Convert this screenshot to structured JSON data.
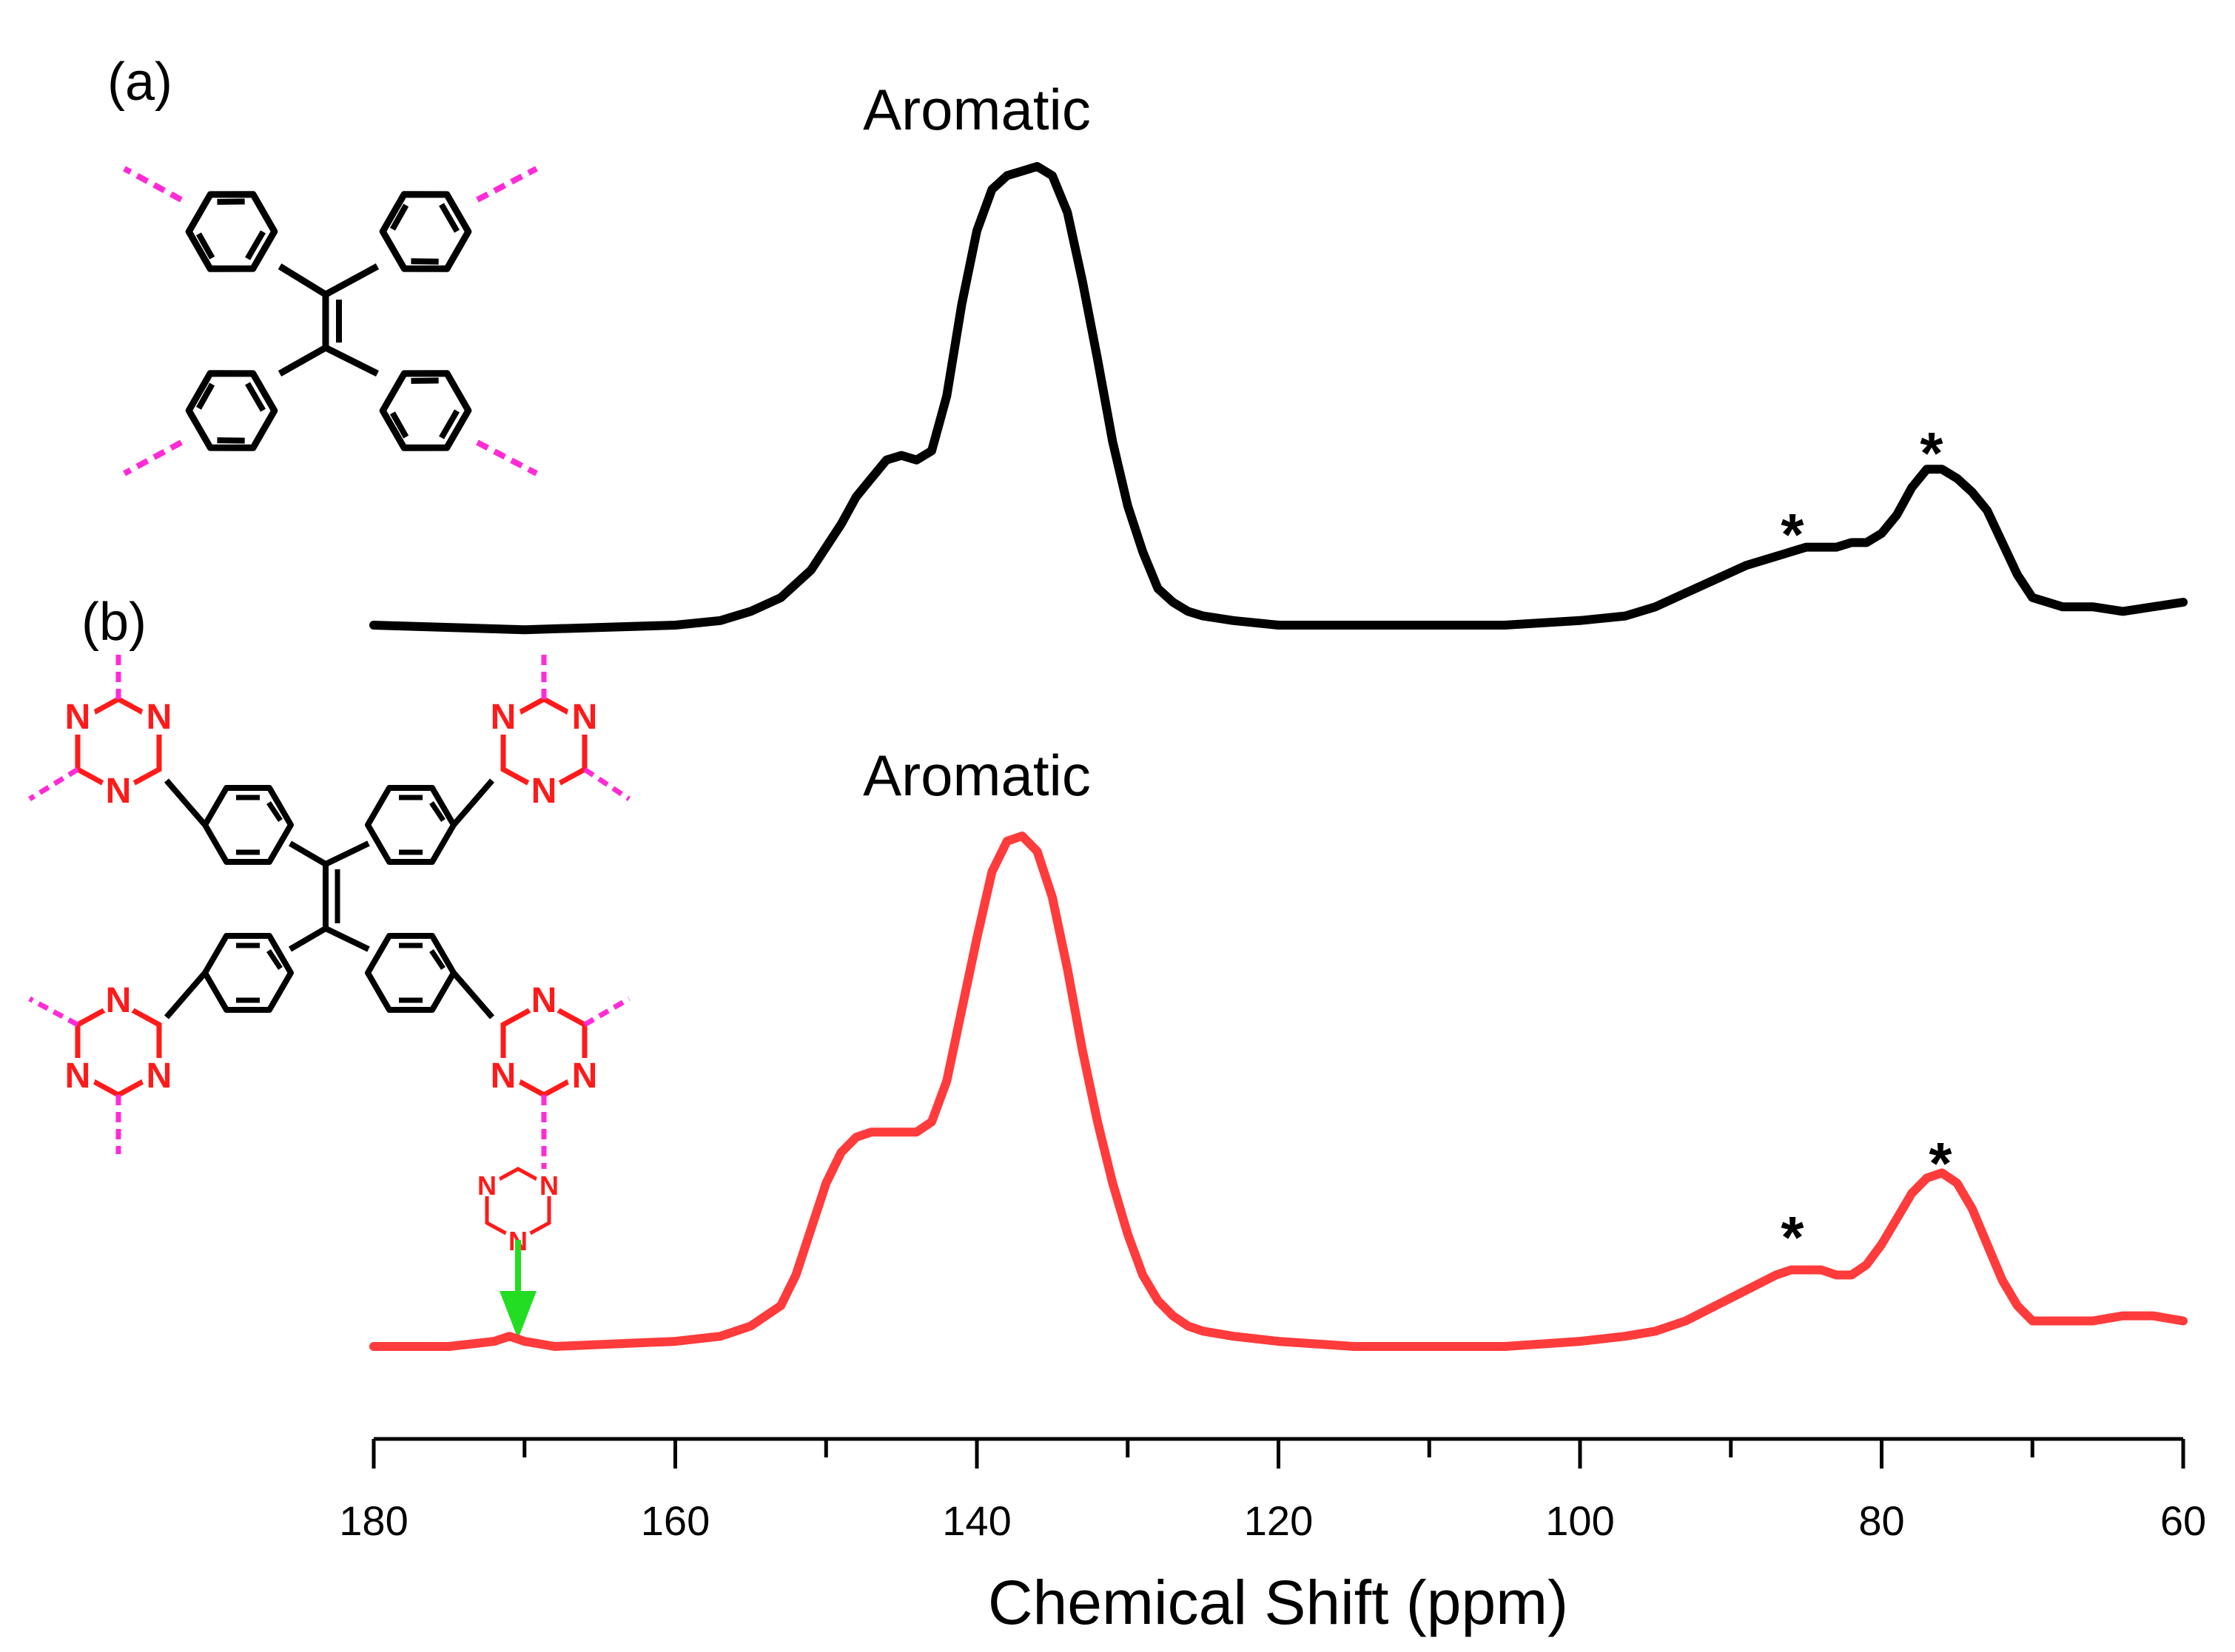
{
  "chart_data": {
    "type": "line",
    "title": "",
    "xlabel": "Chemical Shift (ppm)",
    "ylabel": "",
    "xlim": [
      180,
      60
    ],
    "x_reversed": true,
    "x_ticks": [
      180,
      160,
      140,
      120,
      100,
      80,
      60
    ],
    "grid": false,
    "y_axis_shown": false,
    "series": [
      {
        "color": "#000000",
        "x": [
          180,
          170,
          160,
          157,
          155,
          153,
          151,
          149,
          148,
          147,
          146,
          145,
          144,
          143,
          142,
          141,
          140,
          139,
          138,
          137,
          136,
          135,
          134,
          133,
          132,
          131,
          130,
          129,
          128,
          127,
          126,
          125,
          123,
          120,
          115,
          110,
          105,
          100,
          97,
          95,
          93,
          91,
          89,
          87,
          86,
          85,
          84,
          83,
          82,
          81,
          80,
          79,
          78,
          77,
          76,
          75,
          74,
          73,
          72,
          71,
          70,
          68,
          66,
          64,
          62,
          60
        ],
        "values": [
          0.0,
          -0.01,
          0.0,
          0.01,
          0.03,
          0.06,
          0.12,
          0.22,
          0.28,
          0.32,
          0.36,
          0.37,
          0.36,
          0.38,
          0.5,
          0.7,
          0.86,
          0.95,
          0.98,
          0.99,
          1.0,
          0.98,
          0.9,
          0.75,
          0.58,
          0.4,
          0.26,
          0.16,
          0.08,
          0.05,
          0.03,
          0.02,
          0.01,
          0.0,
          0.0,
          0.0,
          0.0,
          0.01,
          0.02,
          0.04,
          0.07,
          0.1,
          0.13,
          0.15,
          0.16,
          0.17,
          0.17,
          0.17,
          0.18,
          0.18,
          0.2,
          0.24,
          0.3,
          0.34,
          0.34,
          0.32,
          0.29,
          0.25,
          0.18,
          0.11,
          0.06,
          0.04,
          0.04,
          0.03,
          0.04,
          0.05
        ]
      },
      {
        "color": "#ff3b3b",
        "x": [
          180,
          175,
          172,
          171,
          170,
          168,
          160,
          157,
          155,
          153,
          152,
          151,
          150,
          149,
          148,
          147,
          146,
          145,
          144,
          143,
          142,
          141,
          140,
          139,
          138,
          137,
          136,
          135,
          134,
          133,
          132,
          131,
          130,
          129,
          128,
          127,
          126,
          125,
          123,
          120,
          115,
          110,
          105,
          100,
          97,
          95,
          93,
          91,
          89,
          87,
          86,
          85,
          84,
          83,
          82,
          81,
          80,
          79,
          78,
          77,
          76,
          75,
          74,
          73,
          72,
          71,
          70,
          68,
          66,
          64,
          62,
          60
        ],
        "values": [
          0.0,
          0.0,
          0.01,
          0.02,
          0.01,
          0.0,
          0.01,
          0.02,
          0.04,
          0.08,
          0.14,
          0.23,
          0.32,
          0.38,
          0.41,
          0.42,
          0.42,
          0.42,
          0.42,
          0.44,
          0.52,
          0.66,
          0.8,
          0.93,
          0.99,
          1.0,
          0.97,
          0.88,
          0.74,
          0.58,
          0.44,
          0.32,
          0.22,
          0.14,
          0.09,
          0.06,
          0.04,
          0.03,
          0.02,
          0.01,
          0.0,
          0.0,
          0.0,
          0.01,
          0.02,
          0.03,
          0.05,
          0.08,
          0.11,
          0.14,
          0.15,
          0.15,
          0.15,
          0.14,
          0.14,
          0.16,
          0.2,
          0.25,
          0.3,
          0.33,
          0.34,
          0.32,
          0.27,
          0.2,
          0.13,
          0.08,
          0.05,
          0.05,
          0.05,
          0.06,
          0.06,
          0.05
        ]
      }
    ],
    "annotations": [
      {
        "text": "Aromatic",
        "series_index": 0
      },
      {
        "text": "*",
        "series_index": 0,
        "x": 86
      },
      {
        "text": "*",
        "series_index": 0,
        "x": 77
      },
      {
        "text": "Aromatic",
        "series_index": 1
      },
      {
        "text": "*",
        "series_index": 1,
        "x": 86
      },
      {
        "text": "*",
        "series_index": 1,
        "x": 76
      }
    ],
    "panel_labels": [
      "(a)",
      "(b)"
    ],
    "atom_label": "N",
    "colors": {
      "black_trace": "#000000",
      "red_trace": "#ff3b3b",
      "bond_dash": "#ff2bd6",
      "triazine": "#ff1a1a",
      "arrow": "#22dd22"
    }
  }
}
